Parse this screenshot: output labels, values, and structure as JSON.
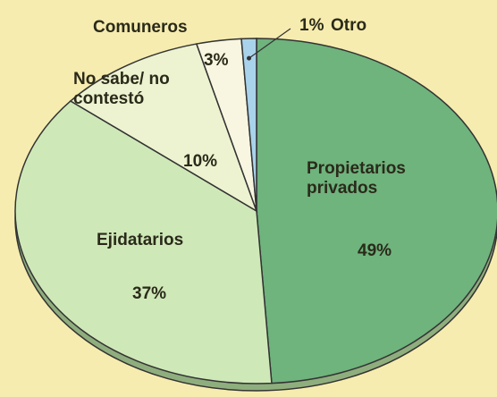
{
  "chart_data": {
    "type": "pie",
    "categories": [
      "Propietarios privados",
      "Ejidatarios",
      "No sabe/ no contestó",
      "Comuneros",
      "Otro"
    ],
    "values": [
      49,
      37,
      10,
      3,
      1
    ],
    "value_labels": [
      "49%",
      "37%",
      "10%",
      "3%",
      "1%"
    ],
    "colors": [
      "#6fb37d",
      "#cfe8b8",
      "#edf3d0",
      "#f8f6e0",
      "#a9d3ea"
    ]
  }
}
